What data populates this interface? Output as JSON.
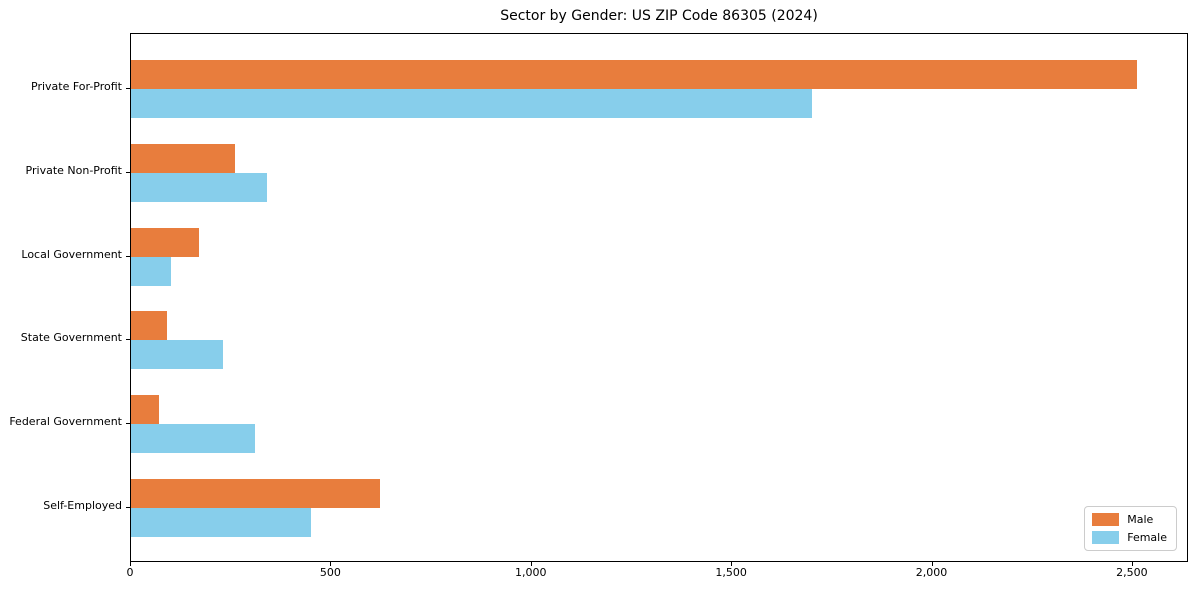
{
  "chart_data": {
    "type": "bar",
    "orientation": "horizontal",
    "title": "Sector by Gender: US ZIP Code 86305 (2024)",
    "categories": [
      "Private For-Profit",
      "Private Non-Profit",
      "Local Government",
      "State Government",
      "Federal Government",
      "Self-Employed"
    ],
    "series": [
      {
        "name": "Male",
        "color": "#E87D3D",
        "values": [
          2510,
          260,
          170,
          90,
          70,
          620
        ]
      },
      {
        "name": "Female",
        "color": "#87CEEB",
        "values": [
          1700,
          340,
          100,
          230,
          310,
          450
        ]
      }
    ],
    "xlabel": "",
    "ylabel": "",
    "xlim": [
      0,
      2640
    ],
    "xticks": {
      "values": [
        0,
        500,
        1000,
        1500,
        2000,
        2500
      ],
      "labels": [
        "0",
        "500",
        "1,000",
        "1,500",
        "2,000",
        "2,500"
      ]
    },
    "grid": false,
    "legend_position": "lower right"
  }
}
